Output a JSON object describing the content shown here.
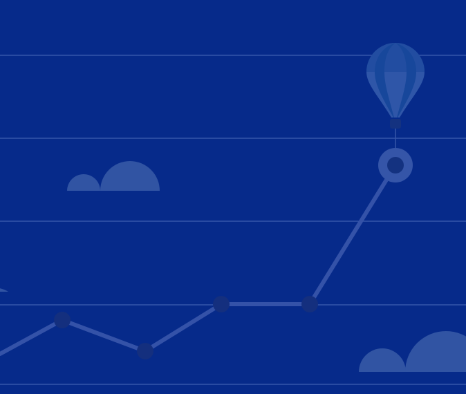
{
  "colors": {
    "background": "#062a8a",
    "gridline": "#3f5fb0",
    "trend_line": "#3452a8",
    "point_fill": "#142f7e",
    "highlight_ring": "#3555a8",
    "highlight_core": "#143280",
    "cloud": "#3154a3",
    "balloon_light": "#2f56a8",
    "balloon_dark": "#17479b",
    "balloon_basket": "#143280",
    "balloon_tether": "#3555a8"
  },
  "icons": [
    "hot-air-balloon-icon",
    "cloud-icon"
  ]
}
